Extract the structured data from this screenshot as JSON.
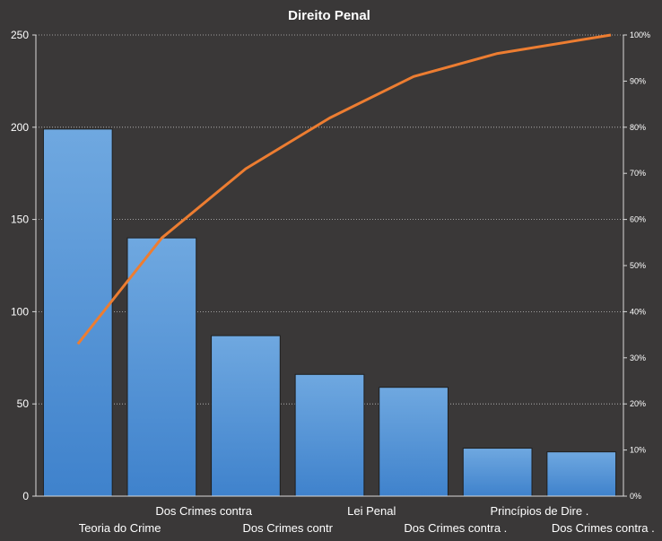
{
  "chart_data": {
    "type": "bar",
    "title": "Direito Penal",
    "categories": [
      "Teoria do Crime",
      "Dos Crimes contra",
      "Dos Crimes contr",
      "Lei Penal",
      "Dos Crimes contra .",
      "Princípios de Dire .",
      "Dos Crimes contra ."
    ],
    "series": [
      {
        "type": "bar",
        "values": [
          199,
          140,
          87,
          66,
          59,
          26,
          24
        ]
      },
      {
        "type": "line",
        "axis": "secondary",
        "values": [
          33,
          56,
          71,
          82,
          91,
          96,
          100
        ]
      }
    ],
    "ylim": [
      0,
      250
    ],
    "yticks": [
      "0",
      "50",
      "100",
      "150",
      "200",
      "250"
    ],
    "y2lim": [
      0,
      100
    ],
    "y2ticks": [
      "0%",
      "10%",
      "20%",
      "30%",
      "40%",
      "50%",
      "60%",
      "70%",
      "80%",
      "90%",
      "100%"
    ],
    "grid": true,
    "colors": {
      "background": "#3a3838",
      "bar_top": "#6fa8e0",
      "bar_bottom": "#3f82cc",
      "line": "#ed7d31",
      "text": "#ffffff",
      "grid": "#bfbfbf"
    }
  }
}
